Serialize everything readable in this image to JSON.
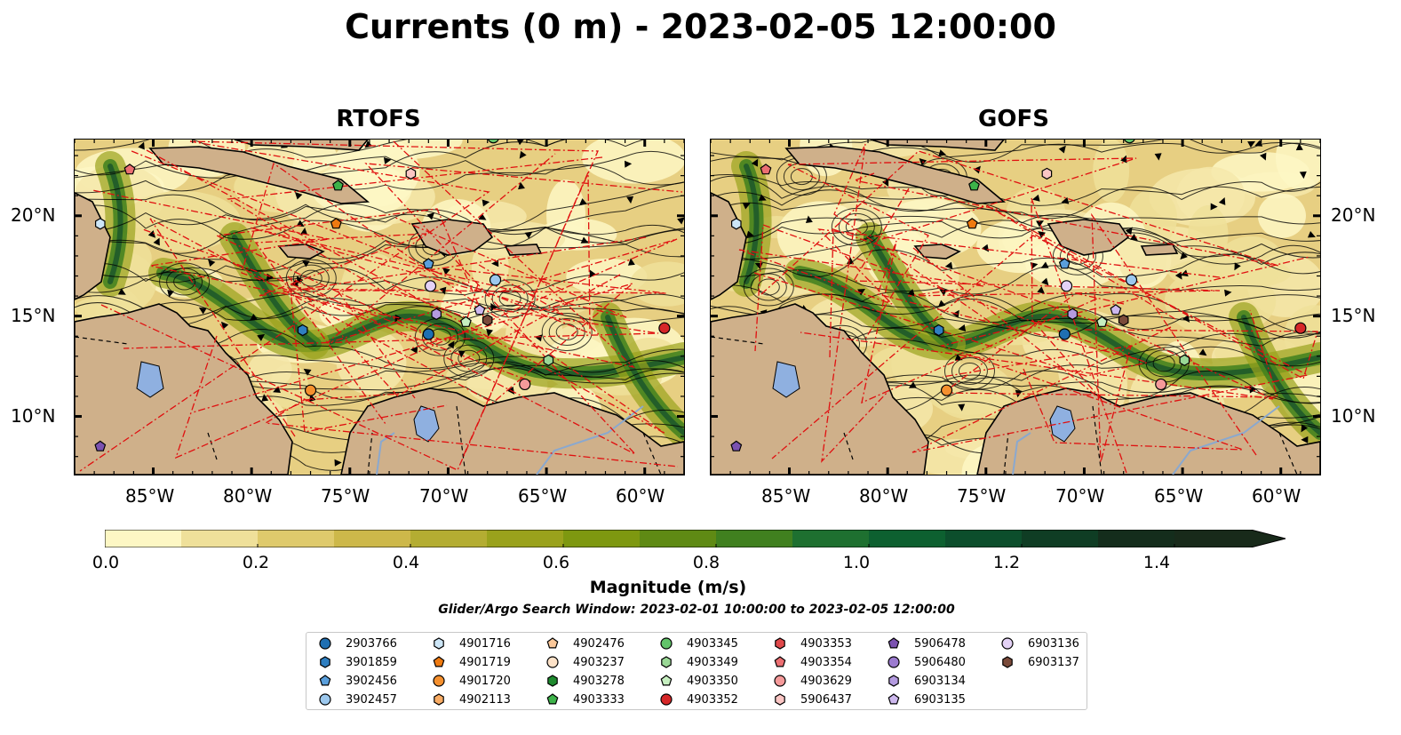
{
  "title": "Currents (0 m) - 2023-02-05 12:00:00",
  "panels": [
    {
      "name": "RTOFS"
    },
    {
      "name": "GOFS"
    }
  ],
  "axes": {
    "lon_ticks": [
      "85°W",
      "80°W",
      "75°W",
      "70°W",
      "65°W",
      "60°W"
    ],
    "lat_ticks": [
      "20°N",
      "15°N",
      "10°N"
    ]
  },
  "colorbar": {
    "label": "Magnitude (m/s)",
    "ticks": [
      "0.0",
      "0.2",
      "0.4",
      "0.6",
      "0.8",
      "1.0",
      "1.2",
      "1.4"
    ],
    "range": [
      0.0,
      1.5
    ],
    "extend": "max",
    "colors": [
      "#fdf7c4",
      "#efe09a",
      "#dfca6c",
      "#cdb84a",
      "#b4ad32",
      "#9aa21c",
      "#7e9810",
      "#5f8a14",
      "#40801f",
      "#1e7030",
      "#0d6030",
      "#0c4e2c",
      "#0f3d24",
      "#142d1c",
      "#182a1a"
    ]
  },
  "search_window": "Glider/Argo Search Window: 2023-02-01 10:00:00 to 2023-02-05 12:00:00",
  "legend": [
    {
      "id": "2903766",
      "marker": "circle",
      "color": "#1f6fb2"
    },
    {
      "id": "3901859",
      "marker": "hexagon",
      "color": "#2f7fc1"
    },
    {
      "id": "3902456",
      "marker": "pentagon",
      "color": "#5a9fdc"
    },
    {
      "id": "3902457",
      "marker": "circle",
      "color": "#9cc8ee"
    },
    {
      "id": "4901716",
      "marker": "hexagon",
      "color": "#cde6f7"
    },
    {
      "id": "4901719",
      "marker": "pentagon",
      "color": "#ef7a10"
    },
    {
      "id": "4901720",
      "marker": "circle",
      "color": "#f5902e"
    },
    {
      "id": "4902113",
      "marker": "hexagon",
      "color": "#f9ac64"
    },
    {
      "id": "4902476",
      "marker": "pentagon",
      "color": "#fbc89a"
    },
    {
      "id": "4903237",
      "marker": "circle",
      "color": "#fde2c8"
    },
    {
      "id": "4903278",
      "marker": "hexagon",
      "color": "#1e8a2e"
    },
    {
      "id": "4903333",
      "marker": "pentagon",
      "color": "#3db34a"
    },
    {
      "id": "4903345",
      "marker": "circle",
      "color": "#62c46a"
    },
    {
      "id": "4903349",
      "marker": "hexagon",
      "color": "#9ad896"
    },
    {
      "id": "4903350",
      "marker": "pentagon",
      "color": "#c6efc0"
    },
    {
      "id": "4903352",
      "marker": "circle",
      "color": "#d62728"
    },
    {
      "id": "4903353",
      "marker": "hexagon",
      "color": "#e0484a"
    },
    {
      "id": "4903354",
      "marker": "pentagon",
      "color": "#ec6f72"
    },
    {
      "id": "4903629",
      "marker": "circle",
      "color": "#f59a9a"
    },
    {
      "id": "5906437",
      "marker": "hexagon",
      "color": "#fbc6c4"
    },
    {
      "id": "5906478",
      "marker": "pentagon",
      "color": "#7b52b0"
    },
    {
      "id": "5906480",
      "marker": "circle",
      "color": "#9c7bd0"
    },
    {
      "id": "6903134",
      "marker": "hexagon",
      "color": "#b49be0"
    },
    {
      "id": "6903135",
      "marker": "pentagon",
      "color": "#cdb8ee"
    },
    {
      "id": "6903136",
      "marker": "circle",
      "color": "#e4d2f6"
    },
    {
      "id": "6903137",
      "marker": "hexagon",
      "color": "#7a4a3a"
    }
  ],
  "floats": [
    {
      "id": "2903766",
      "lon": -71.0,
      "lat": 14.1
    },
    {
      "id": "3901859",
      "lon": -77.4,
      "lat": 14.3
    },
    {
      "id": "3902456",
      "lon": -71.0,
      "lat": 17.6
    },
    {
      "id": "3902457",
      "lon": -67.6,
      "lat": 16.8
    },
    {
      "id": "4901716",
      "lon": -87.7,
      "lat": 19.6
    },
    {
      "id": "4901719",
      "lon": -75.7,
      "lat": 19.6
    },
    {
      "id": "4901720",
      "lon": -77.0,
      "lat": 11.3
    },
    {
      "id": "4903333",
      "lon": -75.6,
      "lat": 21.5
    },
    {
      "id": "4903345",
      "lon": -67.7,
      "lat": 23.9
    },
    {
      "id": "4903349",
      "lon": -64.9,
      "lat": 12.8
    },
    {
      "id": "4903350",
      "lon": -69.1,
      "lat": 14.7
    },
    {
      "id": "4903352",
      "lon": -59.0,
      "lat": 14.4
    },
    {
      "id": "4903354",
      "lon": -86.2,
      "lat": 22.3
    },
    {
      "id": "4903629",
      "lon": -66.1,
      "lat": 11.6
    },
    {
      "id": "5906437",
      "lon": -71.9,
      "lat": 22.1
    },
    {
      "id": "5906478",
      "lon": -87.7,
      "lat": 8.5
    },
    {
      "id": "6903134",
      "lon": -70.6,
      "lat": 15.1
    },
    {
      "id": "6903135",
      "lon": -68.4,
      "lat": 15.3
    },
    {
      "id": "6903136",
      "lon": -70.9,
      "lat": 16.5
    },
    {
      "id": "6903137",
      "lon": -68.0,
      "lat": 14.8
    }
  ]
}
